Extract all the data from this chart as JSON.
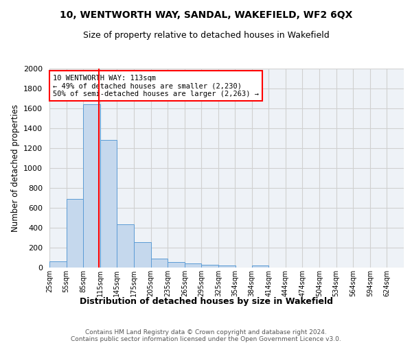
{
  "title": "10, WENTWORTH WAY, SANDAL, WAKEFIELD, WF2 6QX",
  "subtitle": "Size of property relative to detached houses in Wakefield",
  "xlabel": "Distribution of detached houses by size in Wakefield",
  "ylabel": "Number of detached properties",
  "bar_color": "#c5d8ed",
  "bar_edge_color": "#5b9bd5",
  "vline_color": "red",
  "vline_x": 113,
  "categories": [
    "25sqm",
    "55sqm",
    "85sqm",
    "115sqm",
    "145sqm",
    "175sqm",
    "205sqm",
    "235sqm",
    "265sqm",
    "295sqm",
    "325sqm",
    "354sqm",
    "384sqm",
    "414sqm",
    "444sqm",
    "474sqm",
    "504sqm",
    "534sqm",
    "564sqm",
    "594sqm",
    "624sqm"
  ],
  "bin_edges": [
    25,
    55,
    85,
    115,
    145,
    175,
    205,
    235,
    265,
    295,
    325,
    354,
    384,
    414,
    444,
    474,
    504,
    534,
    564,
    594,
    624
  ],
  "bin_width": 30,
  "values": [
    65,
    690,
    1640,
    1285,
    435,
    255,
    88,
    53,
    40,
    30,
    18,
    0,
    18,
    0,
    0,
    0,
    0,
    0,
    0,
    0,
    0
  ],
  "ylim": [
    0,
    2000
  ],
  "yticks": [
    0,
    200,
    400,
    600,
    800,
    1000,
    1200,
    1400,
    1600,
    1800,
    2000
  ],
  "grid_color": "#d0d0d0",
  "annotation_text": "10 WENTWORTH WAY: 113sqm\n← 49% of detached houses are smaller (2,230)\n50% of semi-detached houses are larger (2,263) →",
  "annotation_box_color": "white",
  "annotation_box_edge": "red",
  "footer1": "Contains HM Land Registry data © Crown copyright and database right 2024.",
  "footer2": "Contains public sector information licensed under the Open Government Licence v3.0.",
  "background_color": "#eef2f7"
}
